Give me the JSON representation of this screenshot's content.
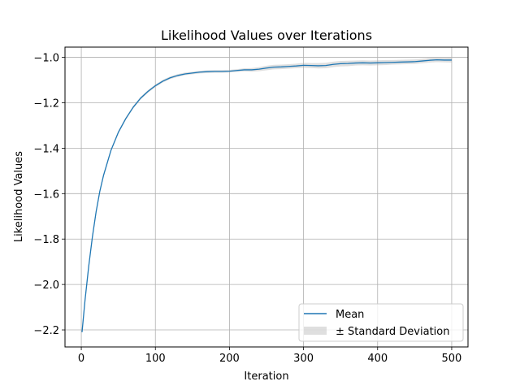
{
  "chart_data": {
    "type": "line",
    "title": "Likelihood Values over Iterations",
    "xlabel": "Iteration",
    "ylabel": "Likelihood Values",
    "xlim": [
      -22,
      522
    ],
    "ylim": [
      -2.275,
      -0.955
    ],
    "xticks": [
      0,
      100,
      200,
      300,
      400,
      500
    ],
    "xtick_labels": [
      "0",
      "100",
      "200",
      "300",
      "400",
      "500"
    ],
    "yticks": [
      -2.2,
      -2.0,
      -1.8,
      -1.6,
      -1.4,
      -1.2,
      -1.0
    ],
    "ytick_labels": [
      "−2.2",
      "−2.0",
      "−1.8",
      "−1.6",
      "−1.4",
      "−1.2",
      "−1.0"
    ],
    "grid": true,
    "legend_position": "lower-right",
    "series": [
      {
        "name": "Mean",
        "color": "#1f77b4",
        "x": [
          1,
          5,
          10,
          15,
          20,
          25,
          30,
          40,
          50,
          60,
          70,
          80,
          90,
          100,
          110,
          120,
          130,
          140,
          150,
          160,
          170,
          180,
          190,
          200,
          210,
          220,
          230,
          240,
          250,
          260,
          270,
          280,
          290,
          300,
          310,
          320,
          330,
          340,
          350,
          360,
          370,
          380,
          390,
          400,
          410,
          420,
          430,
          440,
          450,
          460,
          470,
          480,
          490,
          500
        ],
        "y": [
          -2.21,
          -2.07,
          -1.92,
          -1.79,
          -1.68,
          -1.59,
          -1.52,
          -1.41,
          -1.33,
          -1.27,
          -1.22,
          -1.18,
          -1.15,
          -1.125,
          -1.105,
          -1.09,
          -1.08,
          -1.073,
          -1.069,
          -1.065,
          -1.063,
          -1.062,
          -1.062,
          -1.061,
          -1.058,
          -1.055,
          -1.055,
          -1.052,
          -1.047,
          -1.043,
          -1.042,
          -1.04,
          -1.038,
          -1.035,
          -1.036,
          -1.037,
          -1.036,
          -1.031,
          -1.028,
          -1.027,
          -1.025,
          -1.024,
          -1.025,
          -1.024,
          -1.023,
          -1.022,
          -1.021,
          -1.02,
          -1.019,
          -1.016,
          -1.013,
          -1.011,
          -1.012,
          -1.012
        ]
      }
    ],
    "band": {
      "name": "± Standard Deviation",
      "color": "#b0b0b0",
      "opacity": 0.4,
      "halfwidth": [
        0.003,
        0.003,
        0.004,
        0.004,
        0.005,
        0.005,
        0.006,
        0.006,
        0.006,
        0.006,
        0.006,
        0.006,
        0.006,
        0.006,
        0.006,
        0.006,
        0.006,
        0.006,
        0.006,
        0.006,
        0.006,
        0.006,
        0.006,
        0.006,
        0.006,
        0.007,
        0.008,
        0.009,
        0.01,
        0.01,
        0.01,
        0.01,
        0.01,
        0.011,
        0.011,
        0.012,
        0.012,
        0.012,
        0.012,
        0.012,
        0.011,
        0.011,
        0.011,
        0.011,
        0.011,
        0.01,
        0.01,
        0.01,
        0.01,
        0.01,
        0.01,
        0.01,
        0.01,
        0.011
      ]
    }
  }
}
